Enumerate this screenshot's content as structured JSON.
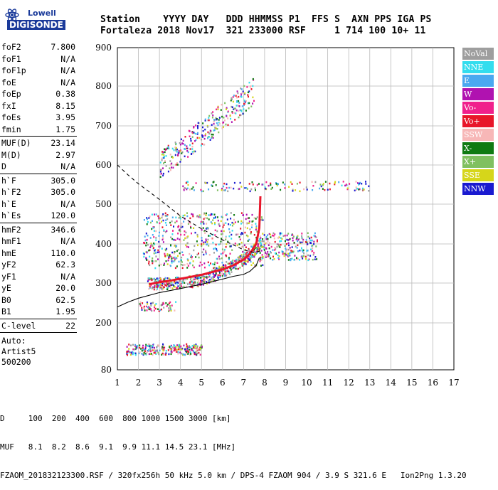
{
  "logo": {
    "line1": "Lowell",
    "line2": "DIGISONDE"
  },
  "header": {
    "row1": "Station    YYYY DAY   DDD HHMMSS P1  FFS S  AXN PPS IGA PS",
    "row2": "Fortaleza 2018 Nov17  321 233000 RSF     1 714 100 10+ 11"
  },
  "params": [
    {
      "label": "foF2",
      "value": "7.800"
    },
    {
      "label": "foF1",
      "value": "N/A"
    },
    {
      "label": "foF1p",
      "value": "N/A"
    },
    {
      "label": "foE",
      "value": "N/A"
    },
    {
      "label": "foEp",
      "value": "0.38"
    },
    {
      "label": "fxI",
      "value": "8.15"
    },
    {
      "label": "foEs",
      "value": "3.95"
    },
    {
      "label": "fmin",
      "value": "1.75"
    },
    {
      "sep": true
    },
    {
      "label": "MUF(D)",
      "value": "23.14"
    },
    {
      "label": "M(D)",
      "value": "2.97"
    },
    {
      "label": "D",
      "value": "N/A"
    },
    {
      "sep": true
    },
    {
      "label": "h`F",
      "value": "305.0"
    },
    {
      "label": "h`F2",
      "value": "305.0"
    },
    {
      "label": "h`E",
      "value": "N/A"
    },
    {
      "label": "h`Es",
      "value": "120.0"
    },
    {
      "sep": true
    },
    {
      "label": "hmF2",
      "value": "346.6"
    },
    {
      "label": "hmF1",
      "value": "N/A"
    },
    {
      "label": "hmE",
      "value": "110.0"
    },
    {
      "label": "yF2",
      "value": "62.3"
    },
    {
      "label": "yF1",
      "value": "N/A"
    },
    {
      "label": "yE",
      "value": "20.0"
    },
    {
      "label": "B0",
      "value": "62.5"
    },
    {
      "label": "B1",
      "value": "1.95"
    },
    {
      "sep": true
    },
    {
      "label": "C-level",
      "value": "22"
    },
    {
      "sep": true
    }
  ],
  "auto_lines": [
    "Auto:",
    "Artist5",
    "500200"
  ],
  "legend": [
    {
      "label": "NoVal",
      "color": "#9e9e9e"
    },
    {
      "label": "NNE",
      "color": "#33ddee"
    },
    {
      "label": "E",
      "color": "#4aa8f0"
    },
    {
      "label": "W",
      "color": "#b012b0"
    },
    {
      "label": "Vo-",
      "color": "#f0208c"
    },
    {
      "label": "Vo+",
      "color": "#e8162a"
    },
    {
      "label": "SSW",
      "color": "#f7b7b7"
    },
    {
      "label": "X-",
      "color": "#0f7a12"
    },
    {
      "label": "X+",
      "color": "#80c060"
    },
    {
      "label": "SSE",
      "color": "#d6d61a"
    },
    {
      "label": "NNW",
      "color": "#1a1ad0"
    }
  ],
  "bottom": {
    "d_row": "D     100  200  400  600  800 1000 1500 3000 [km]",
    "muf_row": "MUF   8.1  8.2  8.6  9.1  9.9 11.1 14.5 23.1 [MHz]",
    "footer": "FZAOM_201832123300.RSF / 320fx256h 50 kHz 5.0 km / DPS-4 FZAOM 904 / 3.9 S 321.6 E   Ion2Png 1.3.20"
  },
  "chart_data": {
    "type": "scatter",
    "xlim": [
      1,
      17
    ],
    "ylim": [
      80,
      900
    ],
    "x_ticks": [
      1,
      2,
      3,
      4,
      5,
      6,
      7,
      8,
      9,
      10,
      11,
      12,
      13,
      14,
      15,
      16,
      17
    ],
    "y_ticks": [
      80,
      200,
      300,
      400,
      500,
      600,
      700,
      800,
      900
    ],
    "grid": true,
    "traces": [
      {
        "name": "O-trace profile",
        "color": "#e8162a",
        "points": [
          [
            2.5,
            297
          ],
          [
            3,
            302
          ],
          [
            3.5,
            306
          ],
          [
            4,
            311
          ],
          [
            4.5,
            316
          ],
          [
            5,
            321
          ],
          [
            5.5,
            328
          ],
          [
            6,
            335
          ],
          [
            6.5,
            345
          ],
          [
            7,
            360
          ],
          [
            7.3,
            375
          ],
          [
            7.6,
            400
          ],
          [
            7.75,
            440
          ],
          [
            7.8,
            520
          ]
        ]
      },
      {
        "name": "X-trace profile",
        "color": "#000000",
        "points": [
          [
            1,
            240
          ],
          [
            1.5,
            252
          ],
          [
            2,
            262
          ],
          [
            3,
            276
          ],
          [
            4,
            286
          ],
          [
            5,
            297
          ],
          [
            6,
            310
          ],
          [
            6.5,
            317
          ],
          [
            7,
            322
          ],
          [
            7.3,
            330
          ],
          [
            7.6,
            345
          ],
          [
            7.75,
            365
          ]
        ]
      },
      {
        "name": "Dashed profile",
        "color": "#000000",
        "points": [
          [
            1,
            600
          ],
          [
            1.5,
            575
          ],
          [
            2,
            552
          ],
          [
            3,
            512
          ],
          [
            4,
            470
          ],
          [
            5,
            438
          ],
          [
            6,
            410
          ],
          [
            6.5,
            398
          ],
          [
            7,
            385
          ],
          [
            7.5,
            378
          ],
          [
            7.8,
            382
          ]
        ]
      }
    ],
    "echo_groups": [
      {
        "name": "Es layer",
        "x_range": [
          1.4,
          5.0
        ],
        "y_range": [
          120,
          148
        ]
      },
      {
        "name": "F-layer O trace",
        "x_range": [
          2.4,
          7.9
        ],
        "y_range": [
          290,
          420
        ]
      },
      {
        "name": "F-layer X spread",
        "x_range": [
          2.2,
          7.9
        ],
        "y_range": [
          340,
          480
        ]
      },
      {
        "name": "Multiple hop",
        "x_range": [
          3.0,
          7.5
        ],
        "y_range": [
          580,
          830
        ]
      },
      {
        "name": "Horizontal band",
        "x_range": [
          4.0,
          13.0
        ],
        "y_range": [
          535,
          560
        ]
      },
      {
        "name": "Spread F tail",
        "x_range": [
          7.8,
          10.5
        ],
        "y_range": [
          360,
          430
        ]
      },
      {
        "name": "Low echo",
        "x_range": [
          2.0,
          3.8
        ],
        "y_range": [
          230,
          255
        ]
      }
    ]
  }
}
